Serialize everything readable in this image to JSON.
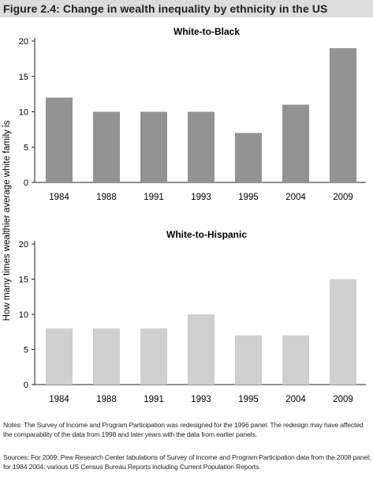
{
  "figure_title": "Figure 2.4: Change in wealth inequality by ethnicity in the US",
  "notes": "Notes: The Survey of Income and Program Participation was redesigned for the 1996 panel. The redesign may have affected the comparability of the data from 1998 and later years with the data from earlier panels.",
  "sources": "Sources: For 2009: Pew Research Center tabulations of Survey of Income and Program Participation data from the 2008 panel; for 1984 2004: various US Census Bureau Reports including Current Population Reports.",
  "chart_data": [
    {
      "type": "bar",
      "title": "White-to-Black",
      "categories": [
        "1984",
        "1988",
        "1991",
        "1993",
        "1995",
        "2004",
        "2009"
      ],
      "values": [
        12,
        10,
        10,
        10,
        7,
        11,
        19
      ],
      "ylabel": "How many times wealthier average white family is",
      "ylim": [
        0,
        20
      ],
      "yticks": [
        0,
        5,
        10,
        15,
        20
      ],
      "bar_color": "#939393",
      "grid": false
    },
    {
      "type": "bar",
      "title": "White-to-Hispanic",
      "categories": [
        "1984",
        "1988",
        "1991",
        "1993",
        "1995",
        "2004",
        "2009"
      ],
      "values": [
        8,
        8,
        8,
        10,
        7,
        7,
        15
      ],
      "ylabel": "How many times wealthier average white family is",
      "ylim": [
        0,
        20
      ],
      "yticks": [
        0,
        5,
        10,
        15,
        20
      ],
      "bar_color": "#cfcfcf",
      "grid": false
    }
  ]
}
